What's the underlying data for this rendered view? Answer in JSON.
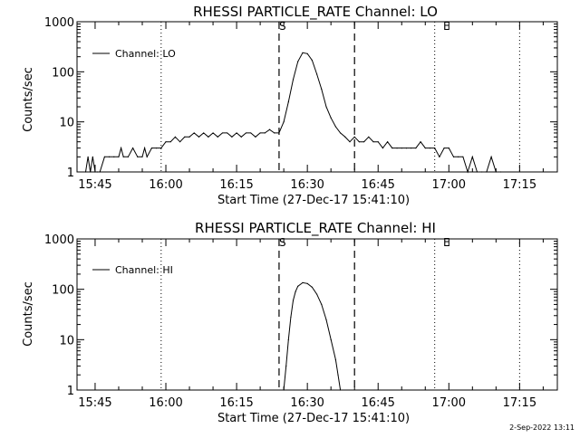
{
  "footer": {
    "date_stamp": "2-Sep-2022 13:11"
  },
  "chart_data": [
    {
      "type": "line",
      "title": "RHESSI PARTICLE_RATE Channel: LO",
      "xlabel": "Start Time (27-Dec-17 15:41:10)",
      "ylabel": "Counts/sec",
      "yscale": "log",
      "ylim": [
        1,
        1000
      ],
      "xlim": [
        "15:41:10",
        "17:23:00"
      ],
      "xticks": [
        "15:45",
        "16:00",
        "16:15",
        "16:30",
        "16:45",
        "17:00",
        "17:15"
      ],
      "yticks": [
        "1",
        "10",
        "100",
        "1000"
      ],
      "legend": {
        "position": "top-left",
        "label": "Channel: LO"
      },
      "markers": {
        "start": "S",
        "end": "E"
      },
      "dashed_lines": [
        "16:24:00",
        "16:40:00"
      ],
      "dotted_lines": [
        "15:59:00",
        "16:57:00",
        "17:15:00"
      ],
      "series": [
        {
          "name": "Channel: LO",
          "x": [
            "15:43:00",
            "15:43:30",
            "15:44:00",
            "15:44:30",
            "15:45:00",
            "15:45:30",
            "15:46:00",
            "15:47:00",
            "15:48:00",
            "15:49:00",
            "15:50:00",
            "15:50:30",
            "15:51:00",
            "15:52:00",
            "15:53:00",
            "15:54:00",
            "15:55:00",
            "15:55:30",
            "15:56:00",
            "15:57:00",
            "15:58:00",
            "15:59:00",
            "16:00:00",
            "16:01:00",
            "16:02:00",
            "16:03:00",
            "16:04:00",
            "16:05:00",
            "16:06:00",
            "16:07:00",
            "16:08:00",
            "16:09:00",
            "16:10:00",
            "16:11:00",
            "16:12:00",
            "16:13:00",
            "16:14:00",
            "16:15:00",
            "16:16:00",
            "16:17:00",
            "16:18:00",
            "16:19:00",
            "16:20:00",
            "16:21:00",
            "16:22:00",
            "16:23:00",
            "16:24:00",
            "16:25:00",
            "16:26:00",
            "16:27:00",
            "16:28:00",
            "16:29:00",
            "16:30:00",
            "16:31:00",
            "16:32:00",
            "16:33:00",
            "16:34:00",
            "16:35:00",
            "16:36:00",
            "16:37:00",
            "16:38:00",
            "16:39:00",
            "16:40:00",
            "16:41:00",
            "16:42:00",
            "16:43:00",
            "16:44:00",
            "16:45:00",
            "16:46:00",
            "16:47:00",
            "16:48:00",
            "16:49:00",
            "16:50:00",
            "16:51:00",
            "16:52:00",
            "16:53:00",
            "16:54:00",
            "16:55:00",
            "16:56:00",
            "16:57:00",
            "16:58:00",
            "16:59:00",
            "17:00:00",
            "17:01:00",
            "17:02:00",
            "17:03:00",
            "17:04:00",
            "17:05:00",
            "17:06:00",
            "17:07:00",
            "17:08:00",
            "17:09:00",
            "17:10:00",
            "17:11:00"
          ],
          "y": [
            1,
            2,
            1,
            2,
            1,
            1,
            1,
            2,
            2,
            2,
            2,
            3,
            2,
            2,
            3,
            2,
            2,
            3,
            2,
            3,
            3,
            3,
            4,
            4,
            5,
            4,
            5,
            5,
            6,
            5,
            6,
            5,
            6,
            5,
            6,
            6,
            5,
            6,
            5,
            6,
            6,
            5,
            6,
            6,
            7,
            6,
            6,
            10,
            25,
            70,
            160,
            240,
            230,
            170,
            90,
            45,
            20,
            12,
            8,
            6,
            5,
            4,
            5,
            4,
            4,
            5,
            4,
            4,
            3,
            4,
            3,
            3,
            3,
            3,
            3,
            3,
            4,
            3,
            3,
            3,
            2,
            3,
            3,
            2,
            2,
            2,
            1,
            2,
            1,
            1,
            1,
            2,
            1,
            1
          ]
        }
      ]
    },
    {
      "type": "line",
      "title": "RHESSI PARTICLE_RATE Channel: HI",
      "xlabel": "Start Time (27-Dec-17 15:41:10)",
      "ylabel": "Counts/sec",
      "yscale": "log",
      "ylim": [
        1,
        1000
      ],
      "xlim": [
        "15:41:10",
        "17:23:00"
      ],
      "xticks": [
        "15:45",
        "16:00",
        "16:15",
        "16:30",
        "16:45",
        "17:00",
        "17:15"
      ],
      "yticks": [
        "1",
        "10",
        "100",
        "1000"
      ],
      "legend": {
        "position": "top-left",
        "label": "Channel: HI"
      },
      "markers": {
        "start": "S",
        "end": "E"
      },
      "dashed_lines": [
        "16:24:00",
        "16:40:00"
      ],
      "dotted_lines": [
        "15:59:00",
        "16:57:00",
        "17:15:00"
      ],
      "series": [
        {
          "name": "Channel: HI",
          "x": [
            "16:25:00",
            "16:25:30",
            "16:26:00",
            "16:26:30",
            "16:27:00",
            "16:27:30",
            "16:28:00",
            "16:29:00",
            "16:30:00",
            "16:31:00",
            "16:32:00",
            "16:33:00",
            "16:34:00",
            "16:35:00",
            "16:36:00",
            "16:36:30",
            "16:37:00"
          ],
          "y": [
            1,
            3,
            10,
            28,
            60,
            90,
            115,
            135,
            130,
            110,
            80,
            50,
            25,
            10,
            4,
            2,
            1
          ]
        }
      ]
    }
  ]
}
